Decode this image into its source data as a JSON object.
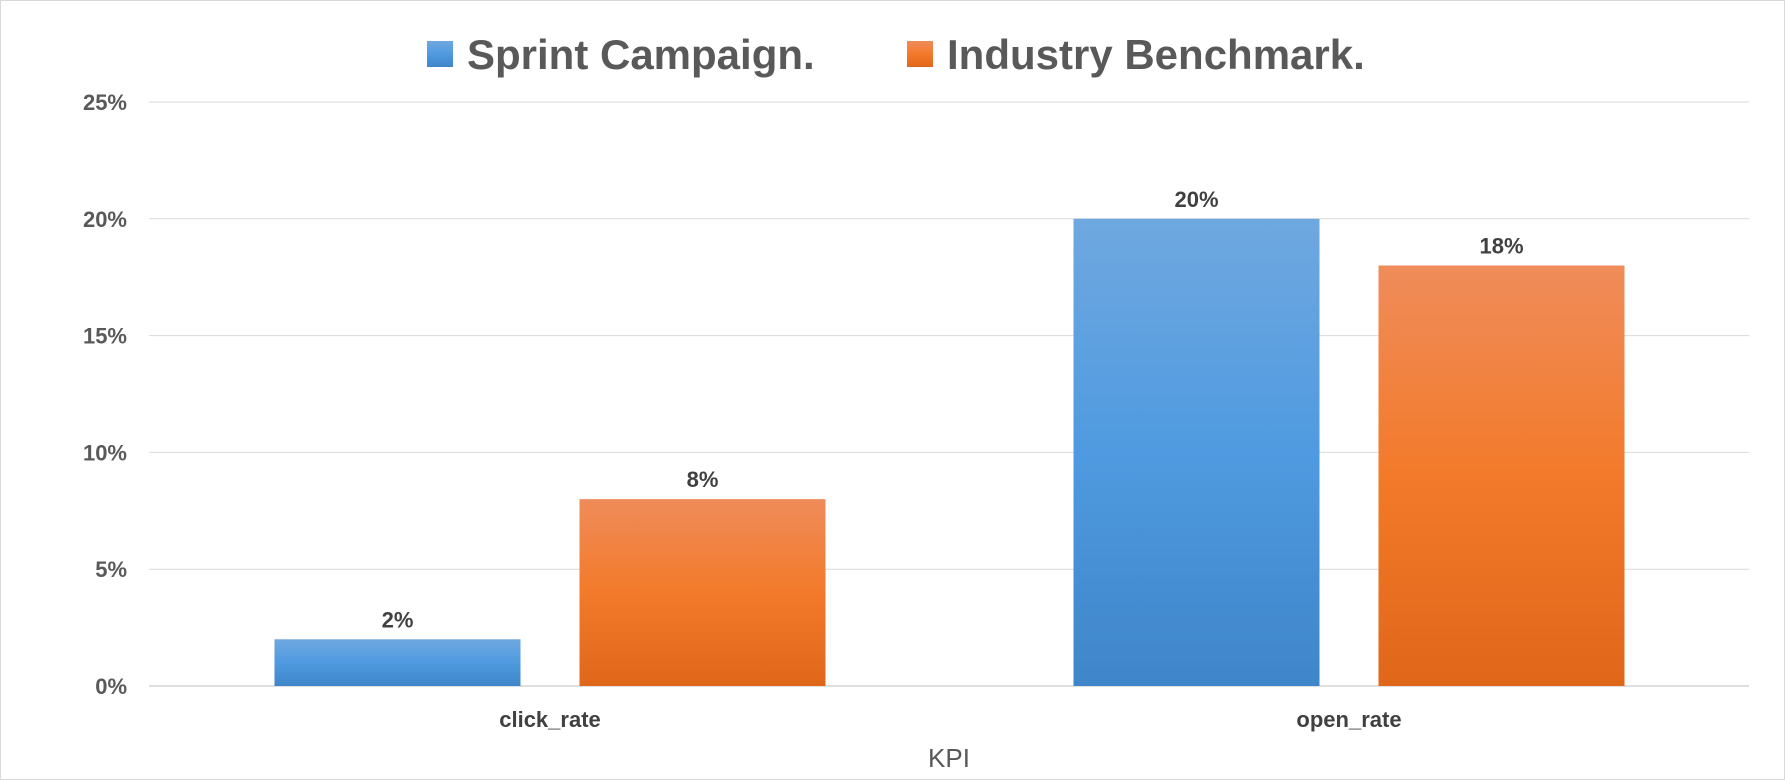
{
  "chart_data": {
    "type": "bar",
    "categories": [
      "click_rate",
      "open_rate"
    ],
    "series": [
      {
        "name": "Sprint Campaign.",
        "values": [
          2,
          20
        ],
        "labels": [
          "2%",
          "20%"
        ],
        "color": "#4a90d9"
      },
      {
        "name": "Industry Benchmark.",
        "values": [
          8,
          18
        ],
        "labels": [
          "8%",
          "18%"
        ],
        "color": "#f0762a"
      }
    ],
    "xlabel": "KPI",
    "ylabel": "",
    "ylim": [
      0,
      25
    ],
    "yticks": [
      0,
      5,
      10,
      15,
      20,
      25
    ],
    "ytick_labels": [
      "0%",
      "5%",
      "10%",
      "15%",
      "20%",
      "25%"
    ],
    "grid": true,
    "legend_position": "top"
  }
}
